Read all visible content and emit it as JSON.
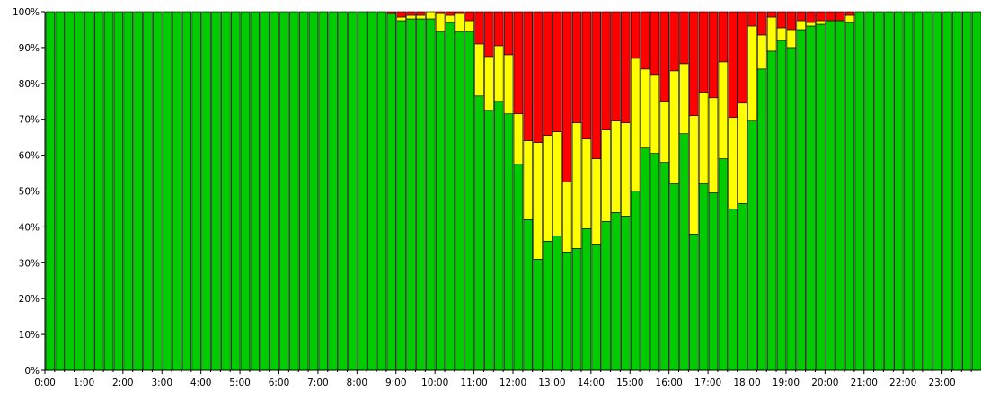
{
  "chart_data": {
    "type": "bar",
    "stacked": true,
    "orientation": "vertical",
    "ylim": [
      0,
      100
    ],
    "y_tick_labels": [
      "0%",
      "10%",
      "20%",
      "30%",
      "40%",
      "50%",
      "60%",
      "70%",
      "80%",
      "90%",
      "100%"
    ],
    "x_tick_labels": [
      "0:00",
      "1:00",
      "2:00",
      "3:00",
      "4:00",
      "5:00",
      "6:00",
      "7:00",
      "8:00",
      "9:00",
      "10:00",
      "11:00",
      "12:00",
      "13:00",
      "14:00",
      "15:00",
      "16:00",
      "17:00",
      "18:00",
      "19:00",
      "20:00",
      "21:00",
      "22:00",
      "23:00"
    ],
    "bars_per_hour": 4,
    "grid": false,
    "legend": "none",
    "series": [
      {
        "color": "#00cc00",
        "values": [
          100,
          100,
          100,
          100,
          100,
          100,
          100,
          100,
          100,
          100,
          100,
          100,
          100,
          100,
          100,
          100,
          100,
          100,
          100,
          100,
          100,
          100,
          100,
          100,
          100,
          100,
          100,
          100,
          100,
          100,
          100,
          100,
          100,
          100,
          100,
          99.5,
          97.5,
          98,
          98,
          98,
          94.5,
          97,
          94.5,
          94.5,
          76.5,
          72.5,
          75,
          71.5,
          57.5,
          42,
          31,
          36,
          37.5,
          33,
          34,
          39.5,
          35,
          41.5,
          44,
          43,
          50,
          62,
          60.5,
          58,
          52,
          66,
          38,
          52,
          49.5,
          59,
          45,
          46.5,
          69.5,
          84,
          89,
          92,
          90,
          95,
          96,
          96.5,
          97.5,
          97.5,
          97,
          100,
          100,
          100,
          100,
          100,
          100,
          100,
          100,
          100,
          100,
          100,
          100,
          100
        ]
      },
      {
        "color": "#ffff00",
        "values": [
          0,
          0,
          0,
          0,
          0,
          0,
          0,
          0,
          0,
          0,
          0,
          0,
          0,
          0,
          0,
          0,
          0,
          0,
          0,
          0,
          0,
          0,
          0,
          0,
          0,
          0,
          0,
          0,
          0,
          0,
          0,
          0,
          0,
          0,
          0,
          0,
          1,
          1,
          1,
          2,
          5,
          2,
          5,
          3,
          14.5,
          15,
          15.5,
          16.5,
          14,
          22,
          32.5,
          29.5,
          29,
          19.5,
          35,
          25,
          24,
          25.5,
          25.5,
          26,
          37,
          22,
          22,
          17,
          31.5,
          19.5,
          33,
          25.5,
          26.5,
          27,
          25.5,
          28,
          26.5,
          9.5,
          9.5,
          3.5,
          5,
          2.5,
          1,
          1,
          0,
          0,
          2,
          0,
          0,
          0,
          0,
          0,
          0,
          0,
          0,
          0,
          0,
          0,
          0,
          0
        ]
      },
      {
        "color": "#ff0000",
        "values": [
          0,
          0,
          0,
          0,
          0,
          0,
          0,
          0,
          0,
          0,
          0,
          0,
          0,
          0,
          0,
          0,
          0,
          0,
          0,
          0,
          0,
          0,
          0,
          0,
          0,
          0,
          0,
          0,
          0,
          0,
          0,
          0,
          0,
          0,
          0,
          0.5,
          1.5,
          1,
          1,
          0,
          0.5,
          1,
          0.5,
          2.5,
          9,
          12.5,
          9.5,
          12,
          28.5,
          36,
          36.5,
          34.5,
          33.5,
          47.5,
          31,
          35.5,
          41,
          33,
          30.5,
          31,
          13,
          16,
          17.5,
          25,
          16.5,
          14.5,
          29,
          22.5,
          24,
          14,
          29.5,
          25.5,
          4,
          6.5,
          1.5,
          4.5,
          5,
          2.5,
          3,
          2.5,
          2.5,
          2.5,
          1,
          0,
          0,
          0,
          0,
          0,
          0,
          0,
          0,
          0,
          0,
          0,
          0,
          0
        ]
      }
    ]
  }
}
